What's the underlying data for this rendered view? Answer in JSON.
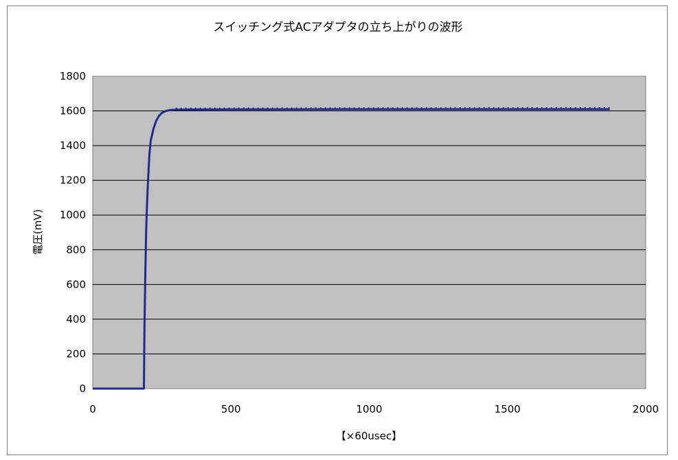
{
  "chart_data": {
    "type": "line",
    "title": "スイッチング式ACアダプタの立ち上がりの波形",
    "xlabel": "【×60usec】",
    "ylabel": "電圧(mV)",
    "xlim": [
      0,
      2000
    ],
    "ylim": [
      0,
      1800
    ],
    "x_ticks": [
      0,
      500,
      1000,
      1500,
      2000
    ],
    "y_ticks": [
      0,
      200,
      400,
      600,
      800,
      1000,
      1200,
      1400,
      1600,
      1800
    ],
    "x_tick_labels": [
      "0",
      "500",
      "1000",
      "1500",
      "2000"
    ],
    "y_tick_labels": [
      "0",
      "200",
      "400",
      "600",
      "800",
      "1000",
      "1200",
      "1400",
      "1600",
      "1800"
    ],
    "grid": "horizontal",
    "legend": "none",
    "series": [
      {
        "color": "#1f2a8c",
        "x": [
          0,
          180,
          185,
          187,
          190,
          193,
          196,
          200,
          205,
          210,
          220,
          230,
          240,
          250,
          260,
          270,
          280,
          300,
          350,
          500,
          1000,
          1500,
          1870
        ],
        "y": [
          0,
          0,
          0,
          350,
          650,
          900,
          1050,
          1200,
          1350,
          1430,
          1500,
          1545,
          1572,
          1588,
          1597,
          1602,
          1605,
          1607,
          1608,
          1609,
          1610,
          1610,
          1610
        ]
      }
    ],
    "plot_background": "#c0c0c0"
  }
}
